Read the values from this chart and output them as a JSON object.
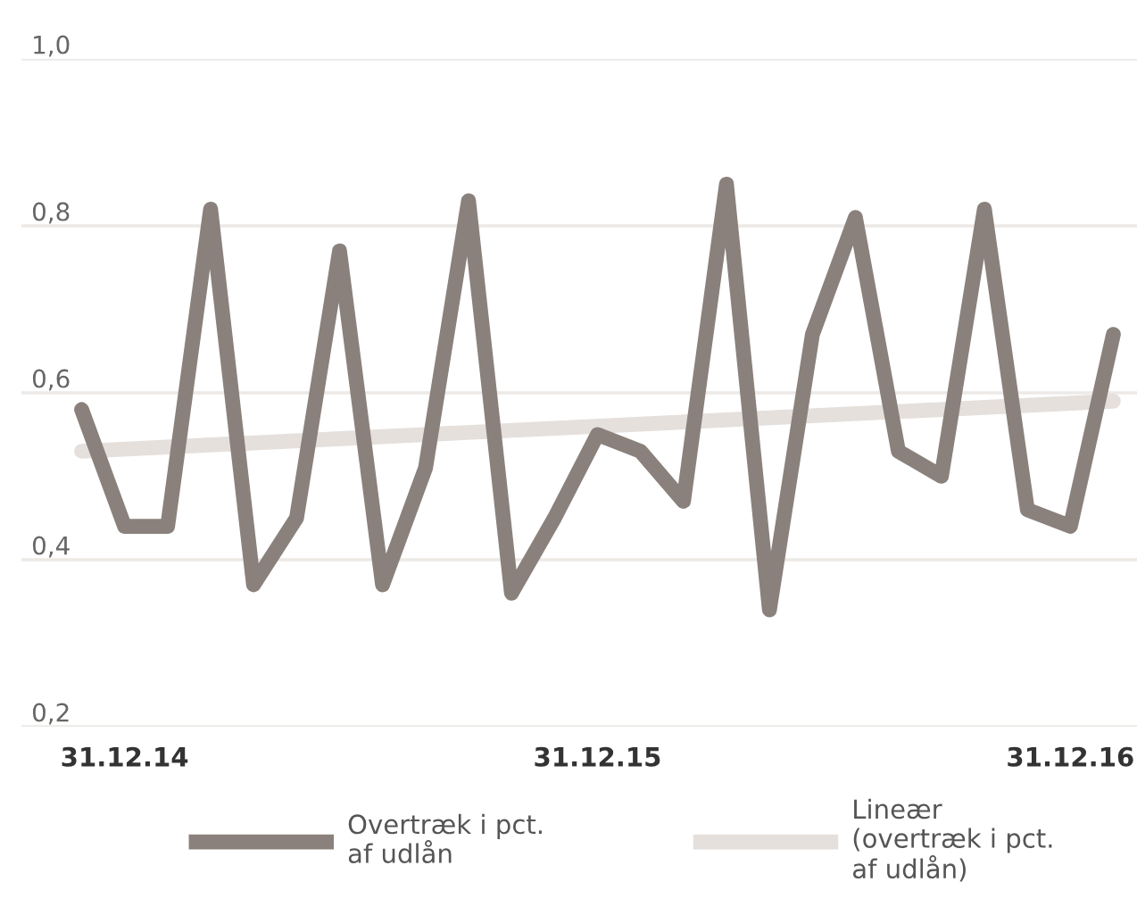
{
  "chart_data": {
    "type": "line",
    "categories": [
      null,
      "31.12.14",
      null,
      null,
      null,
      null,
      null,
      null,
      null,
      null,
      null,
      null,
      "31.12.15",
      null,
      null,
      null,
      null,
      null,
      null,
      null,
      null,
      null,
      null,
      "31.12.16",
      null
    ],
    "series": [
      {
        "name": "Overtræk i pct.\naf udlån",
        "color": "#8a817c",
        "values": [
          0.58,
          0.44,
          0.44,
          0.82,
          0.37,
          0.45,
          0.77,
          0.37,
          0.51,
          0.83,
          0.36,
          0.45,
          0.55,
          0.53,
          0.47,
          0.85,
          0.34,
          0.67,
          0.81,
          0.53,
          0.5,
          0.82,
          0.46,
          0.44,
          0.67
        ]
      },
      {
        "name": "Lineær\n(overtræk i pct.\naf udlån)",
        "color": "#e5e0dc",
        "values": [
          0.53,
          null,
          null,
          null,
          null,
          null,
          null,
          null,
          null,
          null,
          null,
          null,
          null,
          null,
          null,
          null,
          null,
          null,
          null,
          null,
          null,
          null,
          null,
          null,
          0.59
        ]
      }
    ],
    "ylim": [
      0.2,
      1.0
    ],
    "yticks": [
      {
        "value": 0.2,
        "label": "0,2"
      },
      {
        "value": 0.4,
        "label": "0,4"
      },
      {
        "value": 0.6,
        "label": "0,6"
      },
      {
        "value": 0.8,
        "label": "0,8"
      },
      {
        "value": 1.0,
        "label": "1,0"
      }
    ],
    "grid": "y",
    "legend": "bottom",
    "marker": "none",
    "line_style": "solid"
  }
}
